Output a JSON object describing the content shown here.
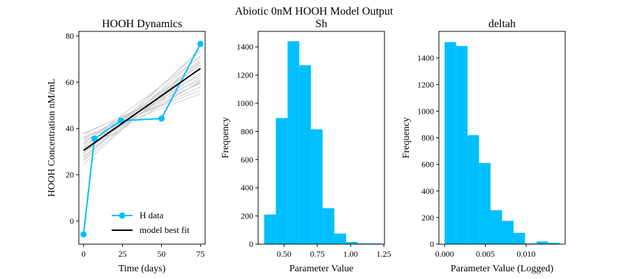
{
  "suptitle": "Abiotic 0nM HOOH Model Output",
  "colors": {
    "data": "#00bfff",
    "fit": "#000000",
    "ensemble": "#cccccc",
    "hist": "#00bfff"
  },
  "chart_data": [
    {
      "type": "line",
      "title": "HOOH Dynamics",
      "xlabel": "Time (days)",
      "ylabel": "HOOH Concentration nM/mL",
      "xlim": [
        -3,
        78
      ],
      "ylim": [
        -10,
        82
      ],
      "xticks": [
        0,
        25,
        50,
        75
      ],
      "yticks": [
        0,
        20,
        40,
        60,
        80
      ],
      "legend_position": "lower-right",
      "series": [
        {
          "name": "H data",
          "style": "line-marker",
          "x": [
            0,
            7,
            24,
            50,
            75
          ],
          "y": [
            -5.8,
            35.6,
            43.4,
            44.3,
            76.6
          ]
        },
        {
          "name": " model best fit",
          "style": "line",
          "x": [
            0,
            75
          ],
          "y": [
            30.5,
            66.0
          ]
        }
      ],
      "ensemble": {
        "style": "thin-lines",
        "lines": [
          [
            24.5,
            70.0
          ],
          [
            26.0,
            68.5
          ],
          [
            27.5,
            71.5
          ],
          [
            28.0,
            66.0
          ],
          [
            29.0,
            73.5
          ],
          [
            30.0,
            64.0
          ],
          [
            30.5,
            69.0
          ],
          [
            31.5,
            62.0
          ],
          [
            32.0,
            67.5
          ],
          [
            33.0,
            60.0
          ],
          [
            34.0,
            65.5
          ],
          [
            35.0,
            58.0
          ],
          [
            35.5,
            63.0
          ],
          [
            36.5,
            56.5
          ],
          [
            37.5,
            61.0
          ],
          [
            26.5,
            74.5
          ],
          [
            29.5,
            60.5
          ],
          [
            33.5,
            71.0
          ],
          [
            36.0,
            55.0
          ],
          [
            38.0,
            59.5
          ]
        ]
      }
    },
    {
      "type": "histogram",
      "title": "Sh",
      "xlabel": "Parameter Value",
      "ylabel": "Frequency",
      "xlim": [
        0.305,
        1.255
      ],
      "ylim": [
        0,
        1510
      ],
      "xticks": [
        0.5,
        0.75,
        1.0
      ],
      "xtick_labels": [
        "0.50",
        "0.75",
        "1.00"
      ],
      "extra_xtick": {
        "value": 1.25,
        "label": "1.25"
      },
      "yticks": [
        0,
        200,
        400,
        600,
        800,
        1000,
        1200,
        1400
      ],
      "bin_edges": [
        0.35,
        0.438,
        0.526,
        0.614,
        0.702,
        0.79,
        0.878,
        0.966,
        1.054,
        1.142,
        1.23
      ],
      "values": [
        210,
        895,
        1440,
        1270,
        815,
        255,
        75,
        15,
        5,
        5
      ]
    },
    {
      "type": "histogram",
      "title": "deltah",
      "xlabel": "Parameter Value (Logged)",
      "ylabel": "Frequency",
      "xlim": [
        -0.0007,
        0.0148
      ],
      "ylim": [
        0,
        1600
      ],
      "xticks": [
        0.0,
        0.005,
        0.01
      ],
      "xtick_labels": [
        "0.000",
        "0.005",
        "0.010"
      ],
      "yticks": [
        0,
        200,
        400,
        600,
        800,
        1000,
        1200,
        1400
      ],
      "bin_edges": [
        0.0,
        0.00141,
        0.00282,
        0.00423,
        0.00564,
        0.00705,
        0.00846,
        0.00987,
        0.01128,
        0.01269,
        0.0141
      ],
      "values": [
        1520,
        1490,
        820,
        610,
        255,
        175,
        85,
        5,
        20,
        10
      ]
    }
  ]
}
